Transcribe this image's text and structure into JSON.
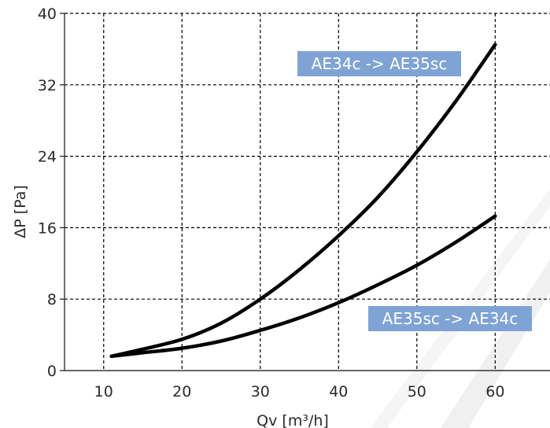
{
  "colors": {
    "background": "#ffffff",
    "curve": "#000000",
    "grid": "#000000",
    "label_box": "#7fa3d4",
    "label_text": "#ffffff",
    "text": "#2a2a2a"
  },
  "chart_data": {
    "type": "line",
    "title": "",
    "xlabel": "Qv [m³/h]",
    "ylabel": "ΔP [Pa]",
    "xlim": [
      5,
      67
    ],
    "ylim": [
      0,
      40
    ],
    "x_ticks": [
      10,
      20,
      30,
      40,
      50,
      60
    ],
    "y_ticks": [
      0,
      8,
      16,
      24,
      32,
      40
    ],
    "grid": true,
    "grid_style": "dashed",
    "legend": "none",
    "series": [
      {
        "name": "AE34c -> AE35sc",
        "x": [
          11,
          15,
          20,
          25,
          30,
          35,
          40,
          45,
          50,
          55,
          60
        ],
        "y": [
          1.6,
          2.4,
          3.5,
          5.3,
          8.0,
          11.3,
          15.1,
          19.4,
          24.5,
          30.2,
          36.5
        ]
      },
      {
        "name": "AE35sc -> AE34c",
        "x": [
          11,
          15,
          20,
          25,
          30,
          35,
          40,
          45,
          50,
          55,
          60
        ],
        "y": [
          1.6,
          2.0,
          2.5,
          3.3,
          4.5,
          5.9,
          7.6,
          9.6,
          11.8,
          14.4,
          17.3
        ]
      }
    ]
  }
}
